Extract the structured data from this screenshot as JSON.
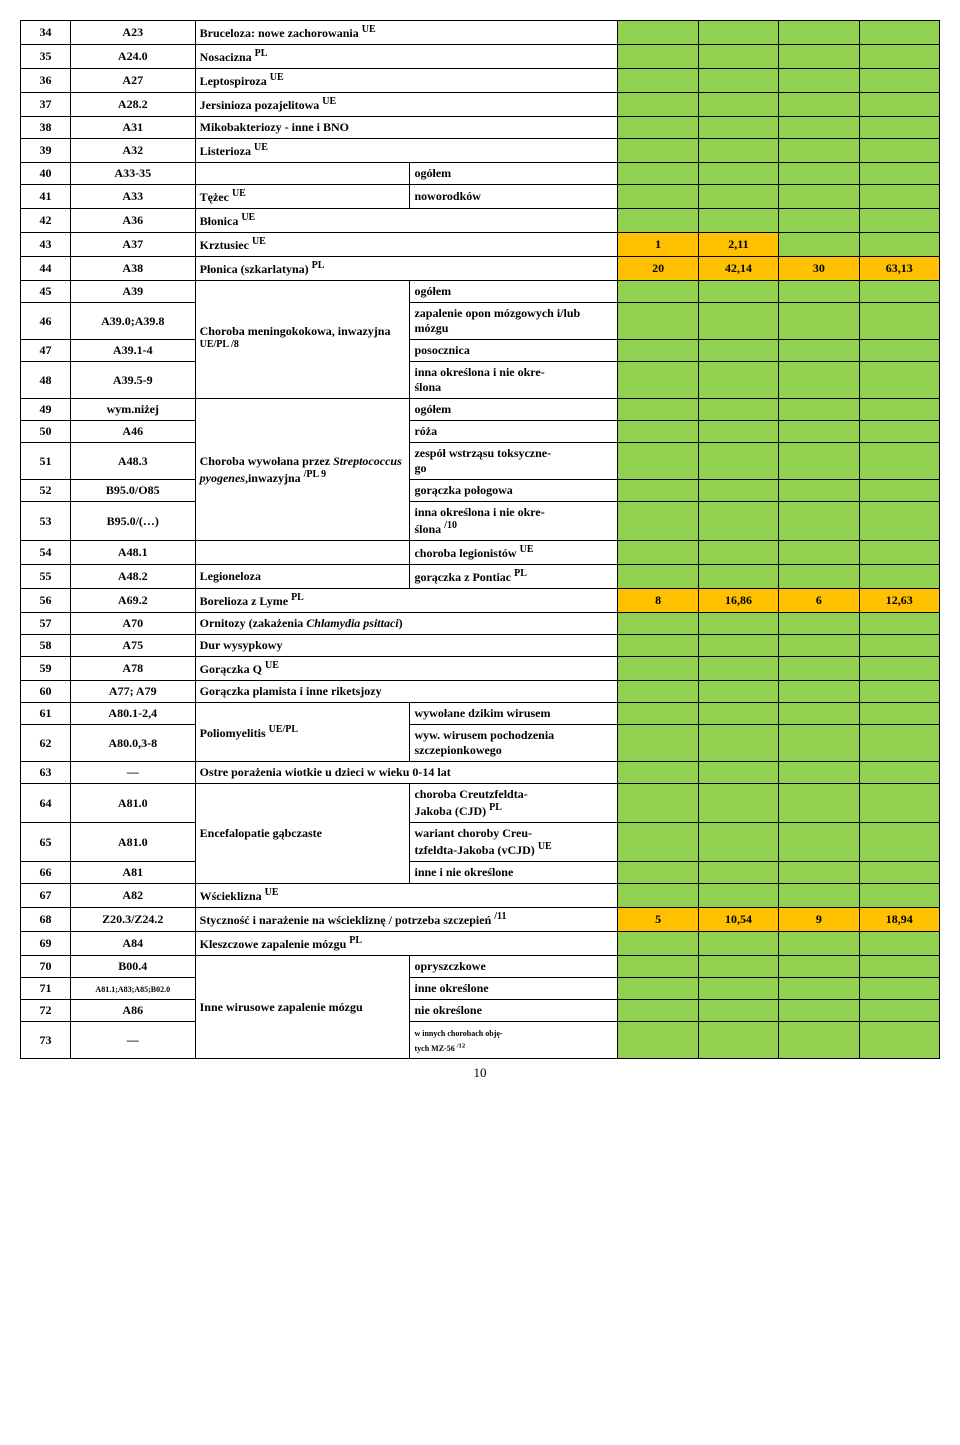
{
  "colors": {
    "green": "#92d050",
    "orange": "#ffc000",
    "white": "#ffffff"
  },
  "page_number": "10",
  "rows": [
    {
      "n": "34",
      "code": "A23",
      "name": "Bruceloza: nowe zachorowania <sup>UE</sup>",
      "span": 2,
      "d": [
        "g",
        "g",
        "g",
        "g"
      ]
    },
    {
      "n": "35",
      "code": "A24.0",
      "name": "Nosacizna <sup>PL</sup>",
      "span": 2,
      "d": [
        "g",
        "g",
        "g",
        "g"
      ]
    },
    {
      "n": "36",
      "code": "A27",
      "name": "Leptospiroza <sup>UE</sup>",
      "span": 2,
      "d": [
        "g",
        "g",
        "g",
        "g"
      ]
    },
    {
      "n": "37",
      "code": "A28.2",
      "name": "Jersinioza pozajelitowa <sup>UE</sup>",
      "span": 2,
      "d": [
        "g",
        "g",
        "g",
        "g"
      ]
    },
    {
      "n": "38",
      "code": "A31",
      "name": "Mikobakteriozy - inne i BNO",
      "span": 2,
      "d": [
        "g",
        "g",
        "g",
        "g"
      ]
    },
    {
      "n": "39",
      "code": "A32",
      "name": "Listerioza <sup>UE</sup>",
      "span": 2,
      "d": [
        "g",
        "g",
        "g",
        "g"
      ]
    },
    {
      "n": "40",
      "code": "A33-35",
      "name": "",
      "name2": "ogółem",
      "d": [
        "g",
        "g",
        "g",
        "g"
      ]
    },
    {
      "n": "41",
      "code": "A33",
      "name": "Tężec <sup>UE</sup>",
      "name2": "noworodków",
      "d": [
        "g",
        "g",
        "g",
        "g"
      ]
    },
    {
      "n": "42",
      "code": "A36",
      "name": "Błonica <sup>UE</sup>",
      "span": 2,
      "d": [
        "g",
        "g",
        "g",
        "g"
      ]
    },
    {
      "n": "43",
      "code": "A37",
      "name": "Krztusiec <sup>UE</sup>",
      "span": 2,
      "d": [
        {
          "v": "1",
          "c": "o"
        },
        {
          "v": "2,11",
          "c": "o"
        },
        "g",
        "g"
      ]
    },
    {
      "n": "44",
      "code": "A38",
      "name": "Płonica (szkarlatyna) <sup>PL</sup>",
      "span": 2,
      "d": [
        {
          "v": "20",
          "c": "o"
        },
        {
          "v": "42,14",
          "c": "o"
        },
        {
          "v": "30",
          "c": "o"
        },
        {
          "v": "63,13",
          "c": "o"
        }
      ]
    },
    {
      "n": "45",
      "code": "A39",
      "group": {
        "text": "Choroba meningokokowa, inwazyjna <sup>UE/PL /8</sup>",
        "rows": 4
      },
      "name2": "ogółem",
      "d": [
        "g",
        "g",
        "g",
        "g"
      ]
    },
    {
      "n": "46",
      "code": "A39.0;A39.8",
      "name2": "zapalenie opon mózgowych i/lub mózgu",
      "d": [
        "g",
        "g",
        "g",
        "g"
      ]
    },
    {
      "n": "47",
      "code": "A39.1-4",
      "name2": "posocznica",
      "d": [
        "g",
        "g",
        "g",
        "g"
      ]
    },
    {
      "n": "48",
      "code": "A39.5-9",
      "name2": "inna określona i nie okre-<br>ślona",
      "d": [
        "g",
        "g",
        "g",
        "g"
      ]
    },
    {
      "n": "49",
      "code": "wym.niżej",
      "group": {
        "text": "Choroba wywołana przez <i>Streptococcus pyogenes</i>,inwazyjna <sup>/PL 9</sup>",
        "rows": 5
      },
      "name2": "ogółem",
      "d": [
        "g",
        "g",
        "g",
        "g"
      ]
    },
    {
      "n": "50",
      "code": "A46",
      "name2": "róża",
      "d": [
        "g",
        "g",
        "g",
        "g"
      ]
    },
    {
      "n": "51",
      "code": "A48.3",
      "name2": "zespół wstrząsu toksyczne-<br>go",
      "d": [
        "g",
        "g",
        "g",
        "g"
      ]
    },
    {
      "n": "52",
      "code": "B95.0/O85",
      "name2": "gorączka połogowa",
      "d": [
        "g",
        "g",
        "g",
        "g"
      ]
    },
    {
      "n": "53",
      "code": "B95.0/(…)",
      "name2": "inna określona i nie okre-<br>ślona <sup>/10</sup>",
      "d": [
        "g",
        "g",
        "g",
        "g"
      ]
    },
    {
      "n": "54",
      "code": "A48.1",
      "group": {
        "text": "Legioneloza",
        "rows": 2,
        "emptyFirst": true
      },
      "name2": "choroba legionistów <sup>UE</sup>",
      "d": [
        "g",
        "g",
        "g",
        "g"
      ]
    },
    {
      "n": "55",
      "code": "A48.2",
      "name2": "gorączka z Pontiac <sup>PL</sup>",
      "d": [
        "g",
        "g",
        "g",
        "g"
      ]
    },
    {
      "n": "56",
      "code": "A69.2",
      "name": "Borelioza z Lyme <sup>PL</sup>",
      "span": 2,
      "d": [
        {
          "v": "8",
          "c": "o"
        },
        {
          "v": "16,86",
          "c": "o"
        },
        {
          "v": "6",
          "c": "o"
        },
        {
          "v": "12,63",
          "c": "o"
        }
      ]
    },
    {
      "n": "57",
      "code": "A70",
      "name": "Ornitozy (zakażenia <i>Chlamydia psittaci</i>)",
      "span": 2,
      "d": [
        "g",
        "g",
        "g",
        "g"
      ]
    },
    {
      "n": "58",
      "code": "A75",
      "name": "Dur wysypkowy",
      "span": 2,
      "d": [
        "g",
        "g",
        "g",
        "g"
      ]
    },
    {
      "n": "59",
      "code": "A78",
      "name": "Gorączka Q <sup>UE</sup>",
      "span": 2,
      "d": [
        "g",
        "g",
        "g",
        "g"
      ]
    },
    {
      "n": "60",
      "code": "A77; A79",
      "name": "Gorączka plamista i inne riketsjozy",
      "span": 2,
      "d": [
        "g",
        "g",
        "g",
        "g"
      ]
    },
    {
      "n": "61",
      "code": "A80.1-2,4",
      "group": {
        "text": "Poliomyelitis <sup>UE/PL</sup>",
        "rows": 2
      },
      "name2": "wywołane dzikim wirusem",
      "d": [
        "g",
        "g",
        "g",
        "g"
      ]
    },
    {
      "n": "62",
      "code": "A80.0,3-8",
      "name2": "wyw. wirusem pochodzenia szczepionkowego",
      "d": [
        "g",
        "g",
        "g",
        "g"
      ]
    },
    {
      "n": "63",
      "code": "—",
      "name": "Ostre porażenia wiotkie u dzieci w wieku 0-14 lat",
      "span": 2,
      "d": [
        "g",
        "g",
        "g",
        "g"
      ]
    },
    {
      "n": "64",
      "code": "A81.0",
      "group": {
        "text": "Encefalopatie gąbczaste",
        "rows": 3
      },
      "name2": "choroba Creutzfeldta-<br>Jakoba (CJD) <sup>PL</sup>",
      "d": [
        "g",
        "g",
        "g",
        "g"
      ]
    },
    {
      "n": "65",
      "code": "A81.0",
      "name2": "wariant choroby Creu-<br>tzfeldta-Jakoba (vCJD) <sup>UE</sup>",
      "d": [
        "g",
        "g",
        "g",
        "g"
      ]
    },
    {
      "n": "66",
      "code": "A81",
      "name2": "inne i nie określone",
      "d": [
        "g",
        "g",
        "g",
        "g"
      ]
    },
    {
      "n": "67",
      "code": "A82",
      "name": "Wścieklizna <sup>UE</sup>",
      "span": 2,
      "d": [
        "g",
        "g",
        "g",
        "g"
      ]
    },
    {
      "n": "68",
      "code": "Z20.3/Z24.2",
      "name": "Styczność i narażenie na wściekliznę / potrzeba szczepień <sup>/11</sup>",
      "span": 2,
      "d": [
        {
          "v": "5",
          "c": "o"
        },
        {
          "v": "10,54",
          "c": "o"
        },
        {
          "v": "9",
          "c": "o"
        },
        {
          "v": "18,94",
          "c": "o"
        }
      ]
    },
    {
      "n": "69",
      "code": "A84",
      "name": "Kleszczowe zapalenie mózgu <sup>PL</sup>",
      "span": 2,
      "d": [
        "g",
        "g",
        "g",
        "g"
      ]
    },
    {
      "n": "70",
      "code": "B00.4",
      "group": {
        "text": "Inne wirusowe zapalenie mózgu",
        "rows": 4
      },
      "name2": "opryszczkowe",
      "d": [
        "g",
        "g",
        "g",
        "g"
      ]
    },
    {
      "n": "71",
      "code": "<span class='small'>A81.1;A83;A85;B02.0</span>",
      "name2": "inne określone",
      "d": [
        "g",
        "g",
        "g",
        "g"
      ]
    },
    {
      "n": "72",
      "code": "A86",
      "name2": "nie określone",
      "d": [
        "g",
        "g",
        "g",
        "g"
      ]
    },
    {
      "n": "73",
      "code": "—",
      "name2": "<span class='small'>w innych chorobach obję-<br>tych MZ-56 <sup>/12</sup></span>",
      "d": [
        "g",
        "g",
        "g",
        "g"
      ]
    }
  ]
}
